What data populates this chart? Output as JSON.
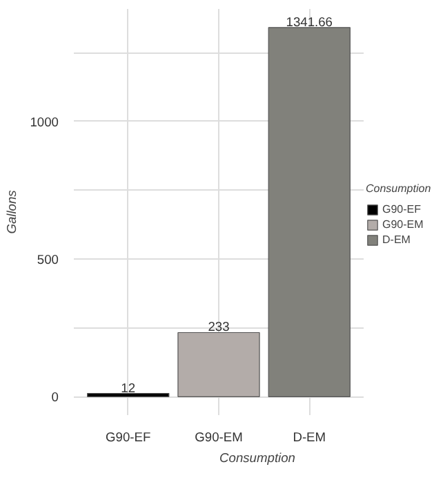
{
  "chart_data": {
    "type": "bar",
    "xlabel": "Consumption",
    "ylabel": "Gallons",
    "legend_title": "Consumption",
    "categories": [
      "G90-EF",
      "G90-EM",
      "D-EM"
    ],
    "series": [
      {
        "name": "G90-EF",
        "color": "#000000",
        "values": [
          12,
          null,
          null
        ],
        "value_labels": [
          "12",
          null,
          null
        ]
      },
      {
        "name": "G90-EM",
        "color": "#b3aca9",
        "values": [
          null,
          233,
          null
        ],
        "value_labels": [
          null,
          "233",
          null
        ]
      },
      {
        "name": "D-EM",
        "color": "#81817b",
        "values": [
          null,
          null,
          1341.66
        ],
        "value_labels": [
          null,
          null,
          "1341.66"
        ]
      }
    ],
    "ylim": [
      -67,
      1409
    ],
    "yticks": [
      0,
      {
        "value": 250,
        "label": null
      },
      500,
      {
        "value": 750,
        "label": null
      },
      1000,
      {
        "value": 1250,
        "label": null
      }
    ],
    "grid": true,
    "legend": "right"
  }
}
